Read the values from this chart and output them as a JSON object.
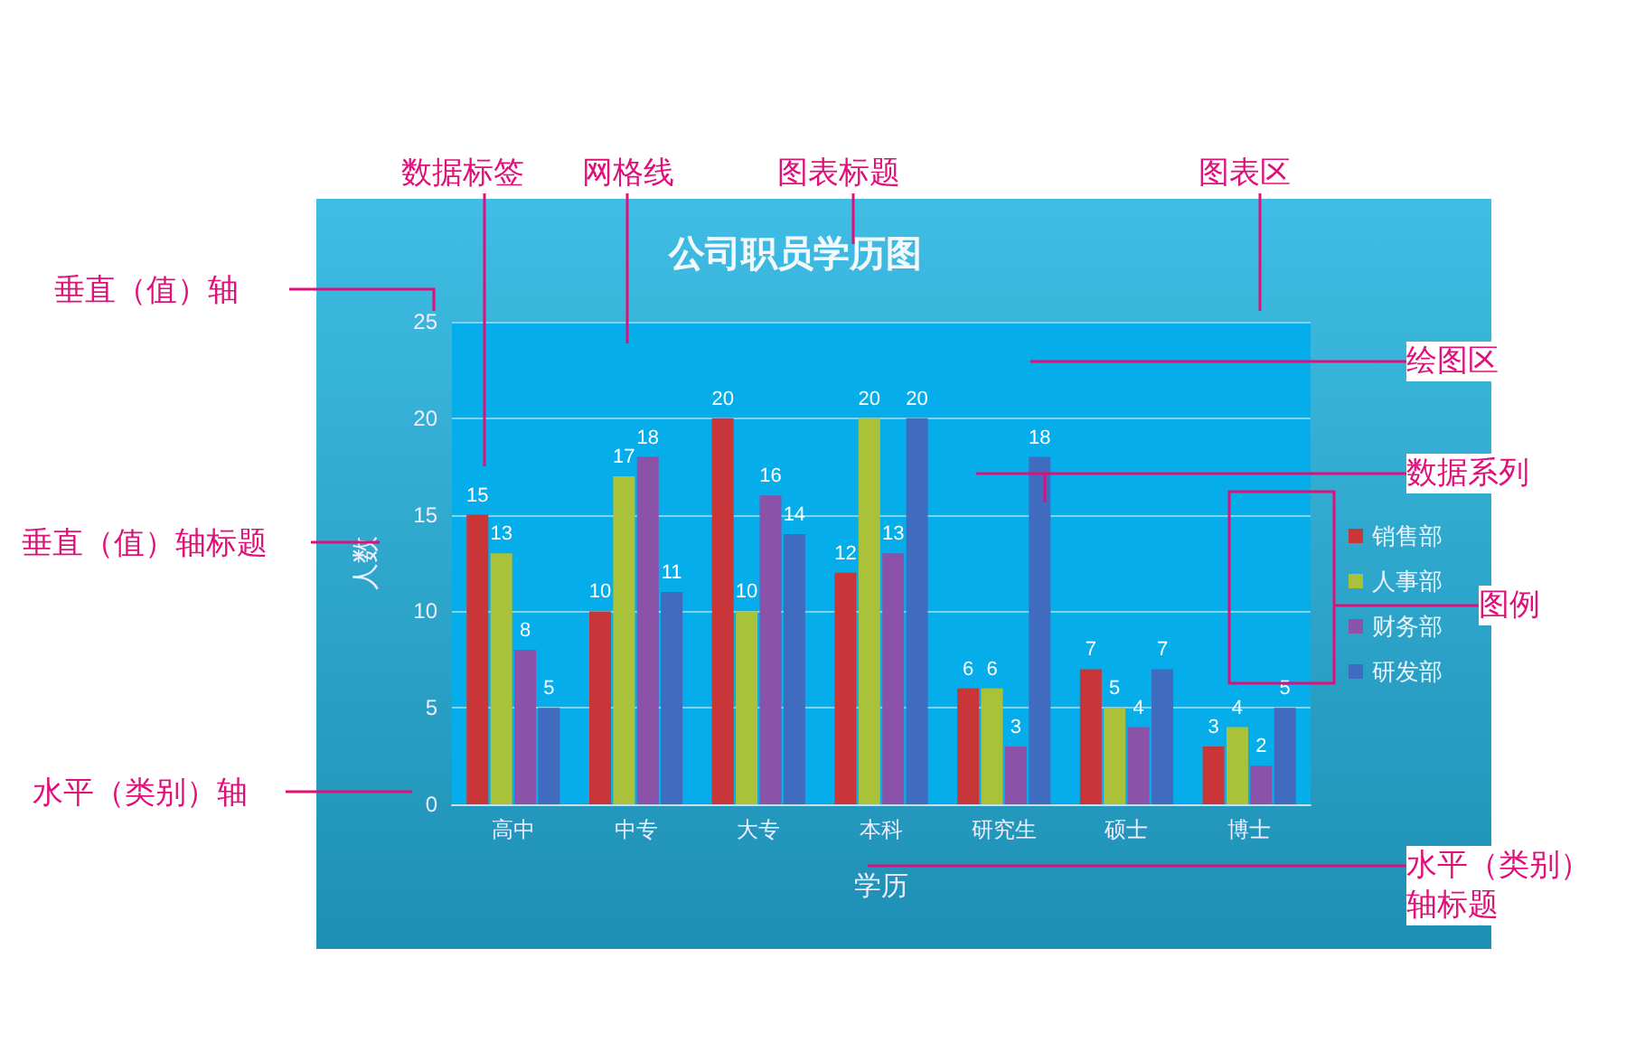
{
  "chart_data": {
    "type": "bar",
    "title": "公司职员学历图",
    "xlabel": "学历",
    "ylabel": "人数",
    "categories": [
      "高中",
      "中专",
      "大专",
      "本科",
      "研究生",
      "硕士",
      "博士"
    ],
    "series": [
      {
        "name": "销售部",
        "color": "#c8363a",
        "values": [
          15,
          10,
          20,
          12,
          6,
          7,
          3
        ]
      },
      {
        "name": "人事部",
        "color": "#a9c23a",
        "values": [
          13,
          17,
          10,
          20,
          6,
          5,
          4
        ]
      },
      {
        "name": "财务部",
        "color": "#8a52a8",
        "values": [
          8,
          18,
          16,
          13,
          3,
          4,
          2
        ]
      },
      {
        "name": "研发部",
        "color": "#3f6cbf",
        "values": [
          5,
          11,
          14,
          20,
          18,
          7,
          5
        ]
      }
    ],
    "ylim": [
      0,
      25
    ],
    "yticks": [
      0,
      5,
      10,
      15,
      20,
      25
    ],
    "grid": "y",
    "legend": "right",
    "data_labels": true,
    "annotations": [
      "数据标签",
      "网格线",
      "图表标题",
      "图表区",
      "垂直（值）轴",
      "绘图区",
      "数据系列",
      "垂直（值）轴标题",
      "图例",
      "水平（类别）轴",
      "水平（类别）轴标题"
    ]
  }
}
